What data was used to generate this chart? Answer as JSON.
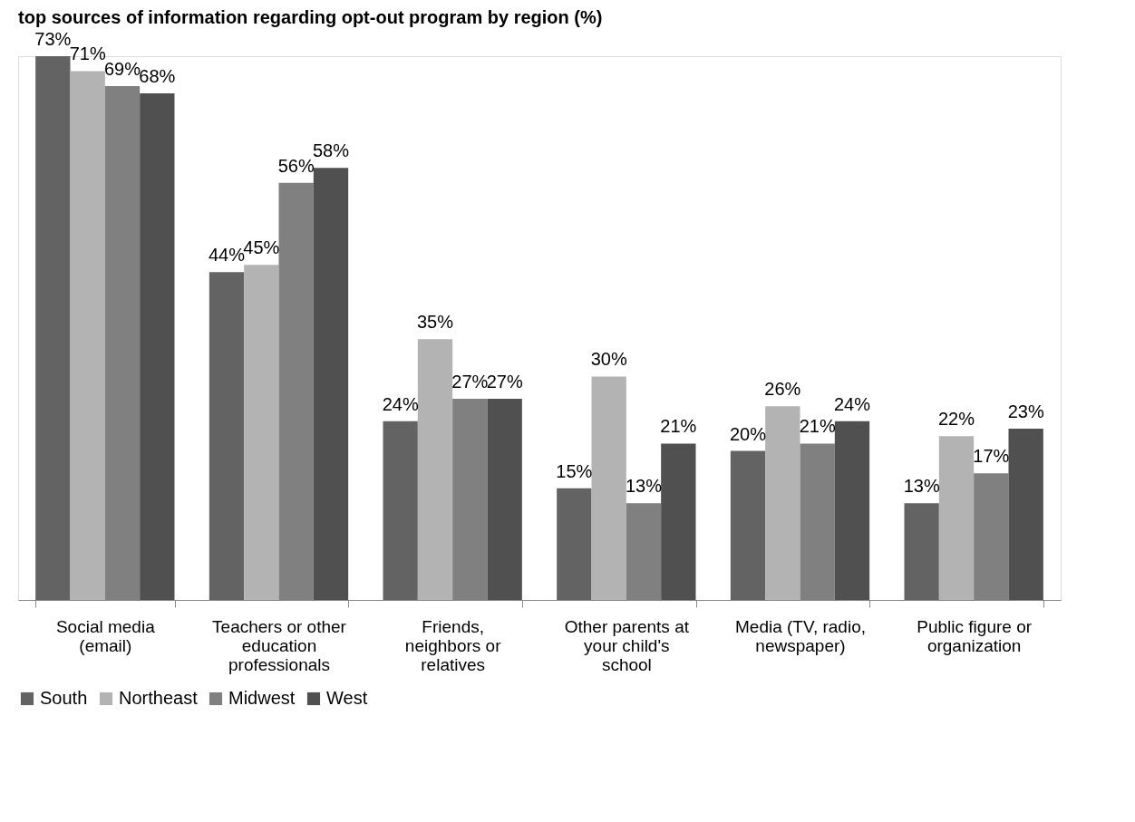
{
  "chart_data": {
    "type": "bar",
    "title": "top sources of information regarding opt-out program by region (%)",
    "categories": [
      "Social media (email)",
      "Teachers or other education professionals",
      "Friends, neighbors or relatives",
      "Other parents at your child's school",
      "Media (TV, radio, newspaper)",
      "Public figure or organization"
    ],
    "series": [
      {
        "name": "South",
        "color": "#636363",
        "values": [
          73,
          44,
          24,
          15,
          20,
          13
        ],
        "value_labels": [
          "73%",
          "44%",
          "24%",
          "15%",
          "20%",
          "13%"
        ]
      },
      {
        "name": "Northeast",
        "color": "#b3b3b3",
        "values": [
          71,
          45,
          35,
          30,
          26,
          22
        ],
        "value_labels": [
          "71%",
          "45%",
          "35%",
          "30%",
          "26%",
          "22%"
        ]
      },
      {
        "name": "Midwest",
        "color": "#808080",
        "values": [
          69,
          56,
          27,
          13,
          21,
          17
        ],
        "value_labels": [
          "69%",
          "56%",
          "27%",
          "13%",
          "21%",
          "17%"
        ]
      },
      {
        "name": "West",
        "color": "#505050",
        "values": [
          68,
          58,
          27,
          21,
          24,
          23
        ],
        "value_labels": [
          "68%",
          "58%",
          "27%",
          "21%",
          "24%",
          "23%"
        ]
      }
    ],
    "legend": "bottom",
    "grid": false
  }
}
